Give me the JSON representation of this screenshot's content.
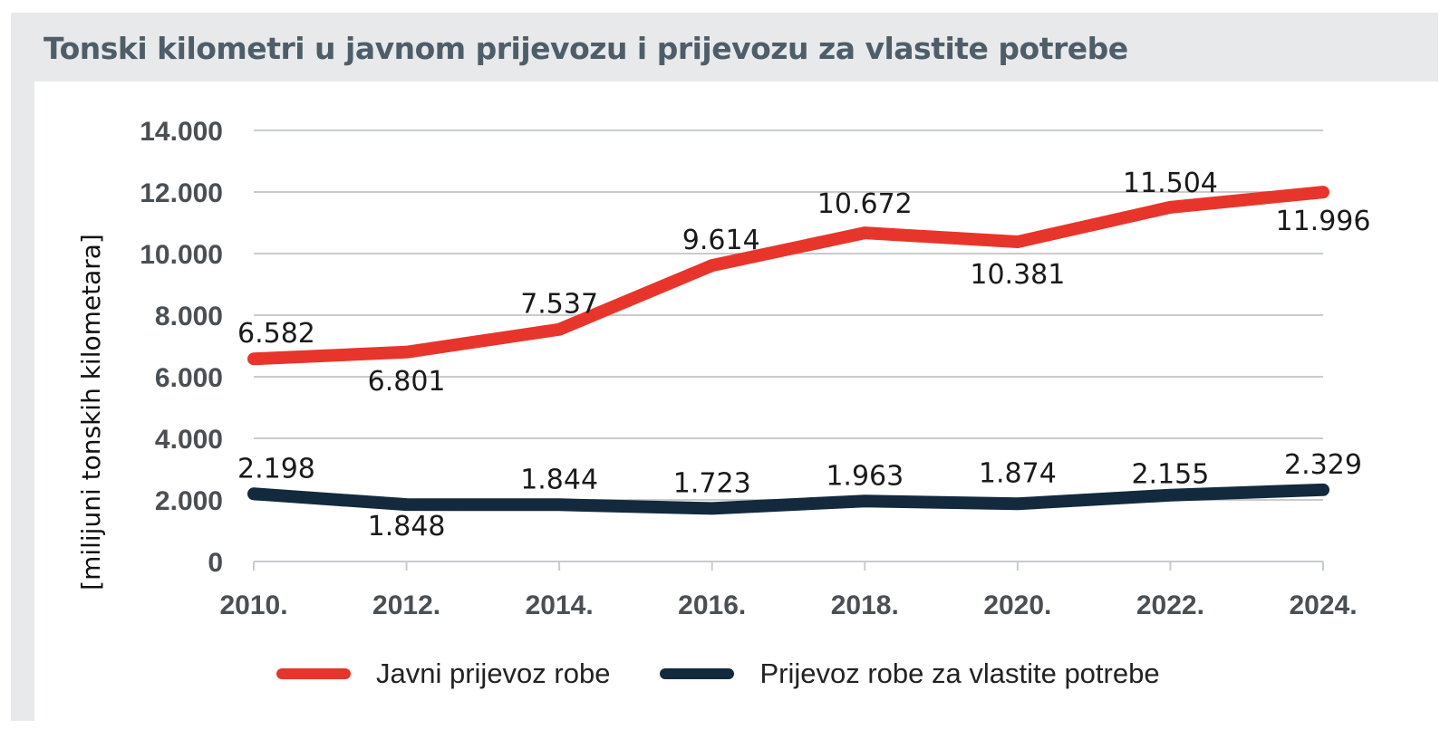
{
  "header": {
    "title": "Tonski kilometri u javnom prijevozu i prijevozu za vlastite potrebe"
  },
  "colors": {
    "series_public": "#e8352b",
    "series_own": "#13293d",
    "grid": "#c9cbcd",
    "background_band": "#e8e9ea"
  },
  "chart_data": {
    "type": "line",
    "title": "Tonski kilometri u javnom prijevozu i prijevozu za vlastite potrebe",
    "xlabel": "",
    "ylabel": "[milijuni tonskih kilometara]",
    "categories": [
      "2010.",
      "2012.",
      "2014.",
      "2016.",
      "2018.",
      "2020.",
      "2022.",
      "2024."
    ],
    "ylim": [
      0,
      14000
    ],
    "y_ticks": [
      0,
      2000,
      4000,
      6000,
      8000,
      10000,
      12000,
      14000
    ],
    "y_tick_labels": [
      "0",
      "2.000",
      "4.000",
      "6.000",
      "8.000",
      "10.000",
      "12.000",
      "14.000"
    ],
    "grid": true,
    "legend_position": "bottom",
    "series": [
      {
        "name": "Javni prijevoz robe",
        "values": [
          6582,
          6801,
          7537,
          9614,
          10672,
          10381,
          11504,
          11996
        ],
        "labels": [
          "6.582",
          "6.801",
          "7.537",
          "9.614",
          "10.672",
          "10.381",
          "11.504",
          "11.996"
        ]
      },
      {
        "name": "Prijevoz robe za vlastite potrebe",
        "values": [
          2198,
          1848,
          1844,
          1723,
          1963,
          1874,
          2155,
          2329
        ],
        "labels": [
          "2.198",
          "1.848",
          "1.844",
          "1.723",
          "1.963",
          "1.874",
          "2.155",
          "2.329"
        ]
      }
    ]
  }
}
